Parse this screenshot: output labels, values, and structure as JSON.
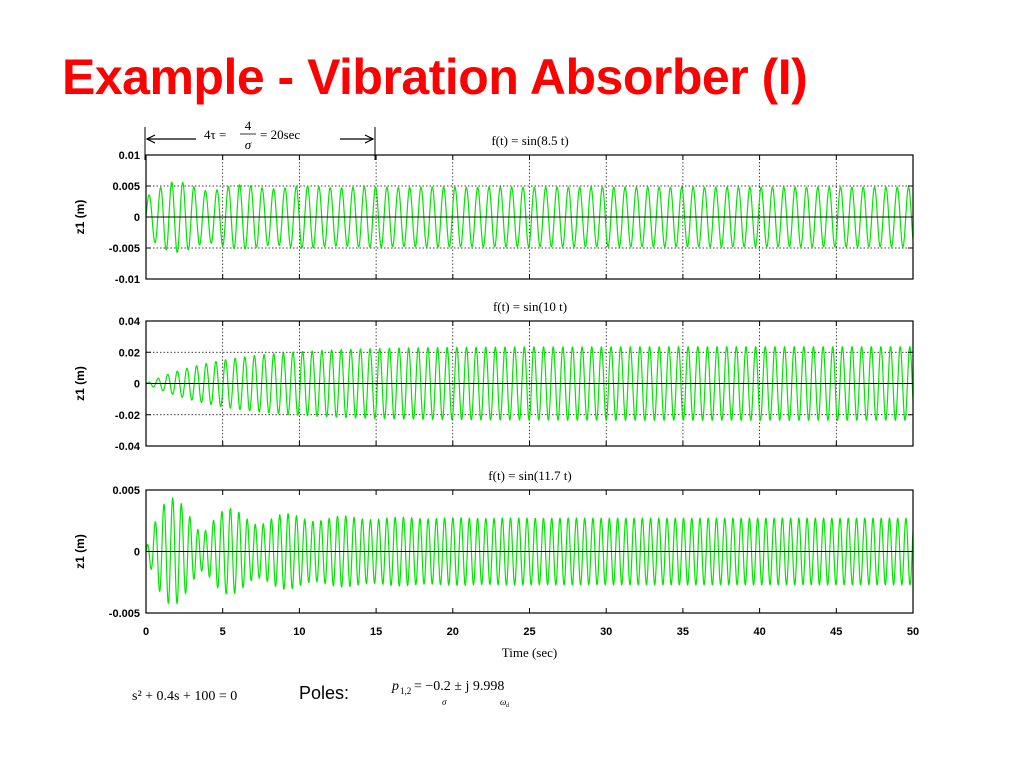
{
  "slide": {
    "title": "Example - Vibration Absorber (I)"
  },
  "annotation": {
    "tau_lhs": "4τ =",
    "tau_num": "4",
    "tau_den": "σ",
    "tau_rhs": "= 20sec"
  },
  "equations": {
    "char_eq": "s² + 0.4s + 100 = 0",
    "poles_label": "Poles:",
    "poles_lhs": "p",
    "poles_sub": "1,2",
    "poles_rhs": "= −0.2 ± j 9.998",
    "sigma_label": "σ",
    "omega_label": "ω",
    "omega_sub": "d"
  },
  "colors": {
    "title": "#ff0000",
    "trace": "#00e600",
    "axes": "#000000"
  },
  "chart_data": [
    {
      "type": "line",
      "title": "f(t) = sin(8.5 t)",
      "forcing_frequency": 8.5,
      "xlabel": "",
      "ylabel": "z1 (m)",
      "xlim": [
        0,
        50
      ],
      "ylim": [
        -0.01,
        0.01
      ],
      "yticks": [
        -0.01,
        -0.005,
        0,
        0.005,
        0.01
      ],
      "ytick_labels": [
        "-0.01",
        "-0.005",
        "0",
        "0.005",
        "0.01"
      ],
      "grid": true,
      "steady_amplitude": 0.0048,
      "peak_amplitude": 0.0055
    },
    {
      "type": "line",
      "title": "f(t) = sin(10 t)",
      "forcing_frequency": 10,
      "xlabel": "",
      "ylabel": "z1 (m)",
      "xlim": [
        0,
        50
      ],
      "ylim": [
        -0.04,
        0.04
      ],
      "yticks": [
        -0.04,
        -0.02,
        0,
        0.02,
        0.04
      ],
      "ytick_labels": [
        "-0.04",
        "-0.02",
        "0",
        "0.02",
        "0.04"
      ],
      "grid": true,
      "steady_amplitude": 0.0235,
      "peak_amplitude": 0.0235
    },
    {
      "type": "line",
      "title": "f(t) = sin(11.7 t)",
      "forcing_frequency": 11.7,
      "xlabel": "Time (sec)",
      "ylabel": "z1 (m)",
      "xlim": [
        0,
        50
      ],
      "ylim": [
        -0.005,
        0.005
      ],
      "yticks": [
        -0.005,
        0,
        0.005
      ],
      "ytick_labels": [
        "-0.005",
        "0",
        "0.005"
      ],
      "xticks": [
        0,
        5,
        10,
        15,
        20,
        25,
        30,
        35,
        40,
        45,
        50
      ],
      "xtick_labels": [
        "0",
        "5",
        "10",
        "15",
        "20",
        "25",
        "30",
        "35",
        "40",
        "45",
        "50"
      ],
      "grid": false,
      "steady_amplitude": 0.0027,
      "peak_amplitude": 0.0046
    }
  ]
}
